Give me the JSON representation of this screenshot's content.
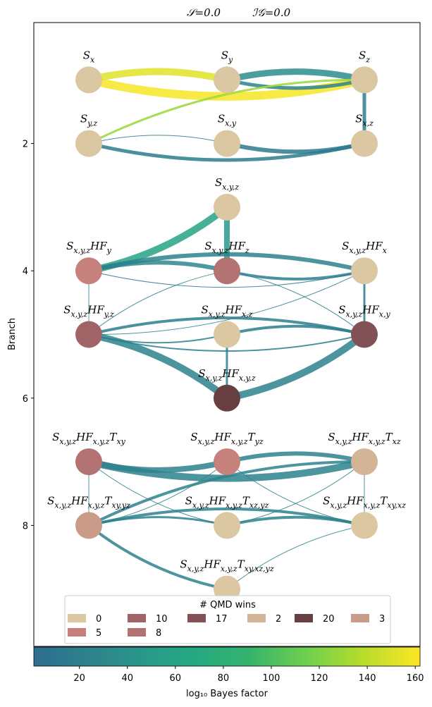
{
  "header": {
    "stat1": "𝒮=0.0",
    "stat2": "ℐ𝒢=0.0"
  },
  "axes": {
    "ylabel": "Branch",
    "yticks": [
      "2",
      "4",
      "6",
      "8"
    ]
  },
  "legend": {
    "title": "# QMD wins",
    "entries": [
      {
        "label": "0",
        "color": "#dbc7a1"
      },
      {
        "label": "10",
        "color": "#a16466"
      },
      {
        "label": "17",
        "color": "#825156"
      },
      {
        "label": "2",
        "color": "#d4b497"
      },
      {
        "label": "20",
        "color": "#673f40"
      },
      {
        "label": "3",
        "color": "#cb9b8a"
      },
      {
        "label": "5",
        "color": "#c7817d"
      },
      {
        "label": "8",
        "color": "#b27372"
      }
    ]
  },
  "colorbar": {
    "label": "log₁₀ Bayes factor",
    "ticks": [
      "20",
      "40",
      "60",
      "80",
      "100",
      "120",
      "140",
      "160"
    ],
    "range": [
      1,
      162
    ]
  },
  "chart_data": {
    "type": "network",
    "y_axis": "Branch",
    "ylim": [
      9.9,
      0.1
    ],
    "nodes": [
      {
        "id": "Sx",
        "label": "S_x",
        "branch": 1,
        "col": 0,
        "wins": "0",
        "color": "#dbc7a1"
      },
      {
        "id": "Sy",
        "label": "S_y",
        "branch": 1,
        "col": 1,
        "wins": "0",
        "color": "#dbc7a1"
      },
      {
        "id": "Sz",
        "label": "S_z",
        "branch": 1,
        "col": 2,
        "wins": "0",
        "color": "#dbc7a1"
      },
      {
        "id": "Syz",
        "label": "S_{y,z}",
        "branch": 2,
        "col": 0,
        "wins": "0",
        "color": "#dbc7a1"
      },
      {
        "id": "Sxy",
        "label": "S_{x,y}",
        "branch": 2,
        "col": 1,
        "wins": "0",
        "color": "#dbc7a1"
      },
      {
        "id": "Sxz",
        "label": "S_{x,z}",
        "branch": 2,
        "col": 2,
        "wins": "0",
        "color": "#dbc7a1"
      },
      {
        "id": "Sxyz",
        "label": "S_{x,y,z}",
        "branch": 3,
        "col": 1,
        "wins": "0",
        "color": "#dbc7a1"
      },
      {
        "id": "HFy",
        "label": "S_{x,y,z}HF_y",
        "branch": 4,
        "col": 0,
        "wins": "5",
        "color": "#c7817d"
      },
      {
        "id": "HFz",
        "label": "S_{x,y,z}HF_z",
        "branch": 4,
        "col": 1,
        "wins": "8",
        "color": "#b27372"
      },
      {
        "id": "HFx",
        "label": "S_{x,y,z}HF_x",
        "branch": 4,
        "col": 2,
        "wins": "0",
        "color": "#dbc7a1"
      },
      {
        "id": "HFyz",
        "label": "S_{x,y,z}HF_{y,z}",
        "branch": 5,
        "col": 0,
        "wins": "10",
        "color": "#a16466"
      },
      {
        "id": "HFxz",
        "label": "S_{x,y,z}HF_{x,z}",
        "branch": 5,
        "col": 1,
        "wins": "0",
        "color": "#dbc7a1"
      },
      {
        "id": "HFxy",
        "label": "S_{x,y,z}HF_{x,y}",
        "branch": 5,
        "col": 2,
        "wins": "17",
        "color": "#825156"
      },
      {
        "id": "HFxyz",
        "label": "S_{x,y,z}HF_{x,y,z}",
        "branch": 6,
        "col": 1,
        "wins": "20",
        "color": "#673f40"
      },
      {
        "id": "Txy",
        "label": "S_{x,y,z}HF_{x,y,z}T_{xy}",
        "branch": 7,
        "col": 0,
        "wins": "8",
        "color": "#b27372"
      },
      {
        "id": "Tyz",
        "label": "S_{x,y,z}HF_{x,y,z}T_{yz}",
        "branch": 7,
        "col": 1,
        "wins": "5",
        "color": "#c7817d"
      },
      {
        "id": "Txz",
        "label": "S_{x,y,z}HF_{x,y,z}T_{xz}",
        "branch": 7,
        "col": 2,
        "wins": "2",
        "color": "#d4b497"
      },
      {
        "id": "Txyyz",
        "label": "S_{x,y,z}HF_{x,y,z}T_{xy,yz}",
        "branch": 8,
        "col": 0,
        "wins": "3",
        "color": "#cb9b8a"
      },
      {
        "id": "Txzyz",
        "label": "S_{x,y,z}HF_{x,y,z}T_{xz,yz}",
        "branch": 8,
        "col": 1,
        "wins": "0",
        "color": "#dbc7a1"
      },
      {
        "id": "Txyxz",
        "label": "S_{x,y,z}HF_{x,y,z}T_{xy,xz}",
        "branch": 8,
        "col": 2,
        "wins": "0",
        "color": "#dbc7a1"
      },
      {
        "id": "Tall",
        "label": "S_{x,y,z}HF_{x,y,z}T_{xy,xz,yz}",
        "branch": 9,
        "col": 1,
        "wins": "0",
        "color": "#dbc7a1"
      }
    ],
    "edges": [
      {
        "from": "Sx",
        "to": "Sz",
        "bf": 160,
        "dir": "down",
        "w": 12
      },
      {
        "from": "Sx",
        "to": "Sy",
        "bf": 152,
        "dir": "up",
        "w": 10
      },
      {
        "from": "Sy",
        "to": "Sz",
        "bf": 35,
        "dir": "up",
        "w": 9
      },
      {
        "from": "Sy",
        "to": "Sz",
        "bf": 25,
        "dir": "down",
        "w": 5
      },
      {
        "from": "Syz",
        "to": "Sz",
        "bf": 120,
        "dir": "up",
        "w": 3
      },
      {
        "from": "Syz",
        "to": "Sz",
        "bf": 150,
        "dir": "up",
        "w": 1
      },
      {
        "from": "Sz",
        "to": "Sxz",
        "bf": 18,
        "dir": "straight",
        "w": 5
      },
      {
        "from": "Syz",
        "to": "Sxz",
        "bf": 18,
        "dir": "down",
        "w": 5
      },
      {
        "from": "Sxy",
        "to": "Sxz",
        "bf": 15,
        "dir": "down",
        "w": 6
      },
      {
        "from": "Syz",
        "to": "Sxy",
        "bf": 12,
        "dir": "up",
        "w": 1
      },
      {
        "from": "Sxyz",
        "to": "HFy",
        "bf": 60,
        "dir": "up",
        "w": 10
      },
      {
        "from": "Sxyz",
        "to": "HFz",
        "bf": 50,
        "dir": "straight",
        "w": 8
      },
      {
        "from": "HFy",
        "to": "HFz",
        "bf": 30,
        "dir": "up",
        "w": 6
      },
      {
        "from": "HFy",
        "to": "HFx",
        "bf": 22,
        "dir": "up",
        "w": 6
      },
      {
        "from": "HFz",
        "to": "HFx",
        "bf": 20,
        "dir": "down",
        "w": 4
      },
      {
        "from": "HFy",
        "to": "HFx",
        "bf": 10,
        "dir": "down",
        "w": 1
      },
      {
        "from": "HFy",
        "to": "HFyz",
        "bf": 30,
        "dir": "straight",
        "w": 1
      },
      {
        "from": "HFyz",
        "to": "HFz",
        "bf": 22,
        "dir": "up",
        "w": 1
      },
      {
        "from": "HFz",
        "to": "HFxy",
        "bf": 22,
        "dir": "up",
        "w": 1
      },
      {
        "from": "HFx",
        "to": "HFyz",
        "bf": 22,
        "dir": "up",
        "w": 1
      },
      {
        "from": "HFx",
        "to": "HFxy",
        "bf": 20,
        "dir": "straight",
        "w": 3
      },
      {
        "from": "HFyz",
        "to": "HFxy",
        "bf": 20,
        "dir": "up",
        "w": 4
      },
      {
        "from": "HFxz",
        "to": "HFxy",
        "bf": 20,
        "dir": "up",
        "w": 4
      },
      {
        "from": "HFyz",
        "to": "HFxz",
        "bf": 22,
        "dir": "down",
        "w": 2
      },
      {
        "from": "HFyz",
        "to": "HFxy",
        "bf": 18,
        "dir": "down",
        "w": 2
      },
      {
        "from": "HFyz",
        "to": "HFxyz",
        "bf": 22,
        "dir": "up",
        "w": 10
      },
      {
        "from": "HFxy",
        "to": "HFxyz",
        "bf": 22,
        "dir": "up",
        "w": 10
      },
      {
        "from": "HFxz",
        "to": "HFxyz",
        "bf": 22,
        "dir": "straight",
        "w": 3
      },
      {
        "from": "Txy",
        "to": "Tyz",
        "bf": 22,
        "dir": "down",
        "w": 8
      },
      {
        "from": "Txy",
        "to": "Txz",
        "bf": 22,
        "dir": "down",
        "w": 10
      },
      {
        "from": "Tyz",
        "to": "Txz",
        "bf": 22,
        "dir": "up",
        "w": 6
      },
      {
        "from": "Txy",
        "to": "Txyyz",
        "bf": 22,
        "dir": "straight",
        "w": 1
      },
      {
        "from": "Txyyz",
        "to": "Txz",
        "bf": 22,
        "dir": "up",
        "w": 4
      },
      {
        "from": "Txyyz",
        "to": "Txzyz",
        "bf": 22,
        "dir": "up",
        "w": 3
      },
      {
        "from": "Txyyz",
        "to": "Txyxz",
        "bf": 22,
        "dir": "up",
        "w": 4
      },
      {
        "from": "Txzyz",
        "to": "Txyxz",
        "bf": 22,
        "dir": "up",
        "w": 4
      },
      {
        "from": "Txy",
        "to": "Txzyz",
        "bf": 22,
        "dir": "down",
        "w": 1
      },
      {
        "from": "Tyz",
        "to": "Txyyz",
        "bf": 22,
        "dir": "up",
        "w": 1
      },
      {
        "from": "Tyz",
        "to": "Txyxz",
        "bf": 22,
        "dir": "down",
        "w": 1
      },
      {
        "from": "Txz",
        "to": "Txzyz",
        "bf": 22,
        "dir": "up",
        "w": 1
      },
      {
        "from": "Txz",
        "to": "Txyxz",
        "bf": 22,
        "dir": "straight",
        "w": 1
      },
      {
        "from": "Txyyz",
        "to": "Tall",
        "bf": 22,
        "dir": "down",
        "w": 4
      },
      {
        "from": "Txyxz",
        "to": "Tall",
        "bf": 22,
        "dir": "down",
        "w": 1
      }
    ]
  }
}
